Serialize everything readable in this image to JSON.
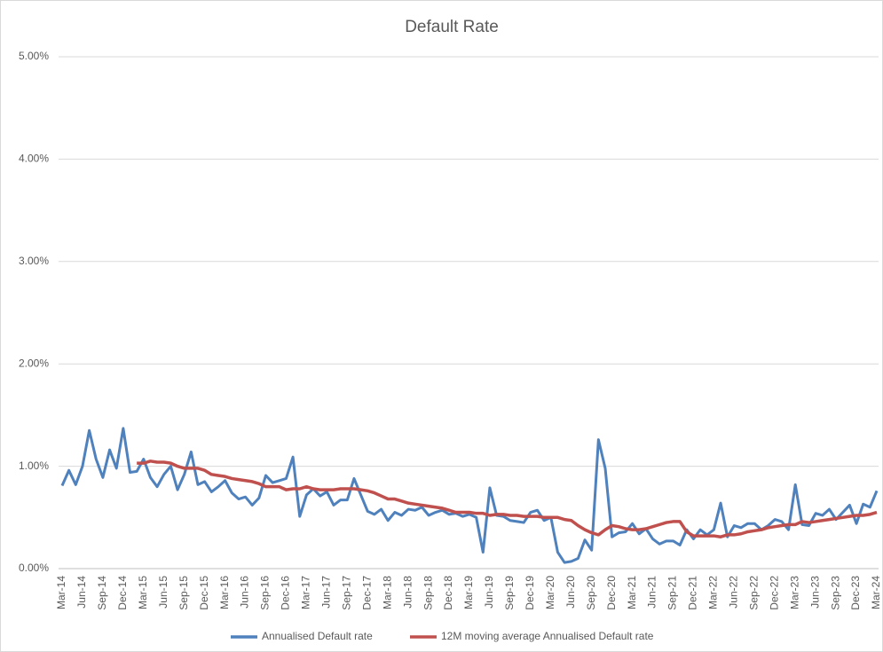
{
  "chart_data": {
    "type": "line",
    "title": "Default Rate",
    "categories": [
      "Mar-14",
      null,
      null,
      "Jun-14",
      null,
      null,
      "Sep-14",
      null,
      null,
      "Dec-14",
      null,
      null,
      "Mar-15",
      null,
      null,
      "Jun-15",
      null,
      null,
      "Sep-15",
      null,
      null,
      "Dec-15",
      null,
      null,
      "Mar-16",
      null,
      null,
      "Jun-16",
      null,
      null,
      "Sep-16",
      null,
      null,
      "Dec-16",
      null,
      null,
      "Mar-17",
      null,
      null,
      "Jun-17",
      null,
      null,
      "Sep-17",
      null,
      null,
      "Dec-17",
      null,
      null,
      "Mar-18",
      null,
      null,
      "Jun-18",
      null,
      null,
      "Sep-18",
      null,
      null,
      "Dec-18",
      null,
      null,
      "Mar-19",
      null,
      null,
      "Jun-19",
      null,
      null,
      "Sep-19",
      null,
      null,
      "Dec-19",
      null,
      null,
      "Mar-20",
      null,
      null,
      "Jun-20",
      null,
      null,
      "Sep-20",
      null,
      null,
      "Dec-20",
      null,
      null,
      "Mar-21",
      null,
      null,
      "Jun-21",
      null,
      null,
      "Sep-21",
      null,
      null,
      "Dec-21",
      null,
      null,
      "Mar-22",
      null,
      null,
      "Jun-22",
      null,
      null,
      "Sep-22",
      null,
      null,
      "Dec-22",
      null,
      null,
      "Mar-23",
      null,
      null,
      "Jun-23",
      null,
      null,
      "Sep-23",
      null,
      null,
      "Dec-23",
      null,
      null,
      "Mar-24"
    ],
    "series": [
      {
        "name": "Annualised Default rate",
        "color": "#4f81bd",
        "values": [
          0.81,
          0.96,
          0.82,
          1.0,
          1.35,
          1.07,
          0.89,
          1.16,
          0.98,
          1.37,
          0.94,
          0.95,
          1.07,
          0.89,
          0.8,
          0.92,
          1.0,
          0.77,
          0.92,
          1.14,
          0.82,
          0.85,
          0.75,
          0.8,
          0.86,
          0.74,
          0.68,
          0.7,
          0.62,
          0.69,
          0.91,
          0.84,
          0.86,
          0.88,
          1.09,
          0.51,
          0.72,
          0.78,
          0.71,
          0.75,
          0.62,
          0.67,
          0.67,
          0.88,
          0.72,
          0.56,
          0.53,
          0.58,
          0.47,
          0.55,
          0.52,
          0.58,
          0.57,
          0.6,
          0.52,
          0.55,
          0.57,
          0.53,
          0.54,
          0.51,
          0.53,
          0.5,
          0.16,
          0.79,
          0.52,
          0.51,
          0.47,
          0.46,
          0.45,
          0.55,
          0.57,
          0.47,
          0.5,
          0.16,
          0.06,
          0.07,
          0.1,
          0.28,
          0.18,
          1.26,
          0.98,
          0.31,
          0.35,
          0.36,
          0.44,
          0.34,
          0.39,
          0.29,
          0.24,
          0.27,
          0.27,
          0.23,
          0.38,
          0.29,
          0.38,
          0.33,
          0.38,
          0.64,
          0.31,
          0.42,
          0.4,
          0.44,
          0.44,
          0.38,
          0.42,
          0.48,
          0.46,
          0.38,
          0.82,
          0.43,
          0.42,
          0.54,
          0.52,
          0.58,
          0.48,
          0.55,
          0.62,
          0.44,
          0.63,
          0.6,
          0.76
        ]
      },
      {
        "name": "12M moving average Annualised Default rate",
        "color": "#c0504d",
        "values": [
          null,
          null,
          null,
          null,
          null,
          null,
          null,
          null,
          null,
          null,
          null,
          1.03,
          1.03,
          1.05,
          1.04,
          1.04,
          1.03,
          1.0,
          0.98,
          0.98,
          0.98,
          0.96,
          0.92,
          0.91,
          0.9,
          0.88,
          0.87,
          0.86,
          0.85,
          0.83,
          0.8,
          0.8,
          0.8,
          0.77,
          0.78,
          0.78,
          0.8,
          0.78,
          0.77,
          0.77,
          0.77,
          0.78,
          0.78,
          0.78,
          0.77,
          0.76,
          0.74,
          0.71,
          0.68,
          0.68,
          0.66,
          0.64,
          0.63,
          0.62,
          0.61,
          0.6,
          0.59,
          0.57,
          0.55,
          0.55,
          0.55,
          0.54,
          0.54,
          0.52,
          0.53,
          0.53,
          0.52,
          0.52,
          0.51,
          0.51,
          0.51,
          0.5,
          0.5,
          0.5,
          0.48,
          0.47,
          0.42,
          0.38,
          0.35,
          0.33,
          0.38,
          0.42,
          0.41,
          0.39,
          0.38,
          0.38,
          0.39,
          0.41,
          0.43,
          0.45,
          0.46,
          0.46,
          0.36,
          0.32,
          0.32,
          0.32,
          0.32,
          0.31,
          0.33,
          0.33,
          0.34,
          0.36,
          0.37,
          0.38,
          0.4,
          0.41,
          0.42,
          0.43,
          0.43,
          0.46,
          0.45,
          0.46,
          0.47,
          0.48,
          0.49,
          0.5,
          0.51,
          0.52,
          0.52,
          0.53,
          0.55
        ]
      }
    ],
    "ylim": [
      0,
      5
    ],
    "yticks": [
      {
        "value": 0,
        "label": "0.00%"
      },
      {
        "value": 1,
        "label": "1.00%"
      },
      {
        "value": 2,
        "label": "2.00%"
      },
      {
        "value": 3,
        "label": "3.00%"
      },
      {
        "value": 4,
        "label": "4.00%"
      },
      {
        "value": 5,
        "label": "5.00%"
      }
    ],
    "grid": true,
    "legend": "bottom"
  }
}
